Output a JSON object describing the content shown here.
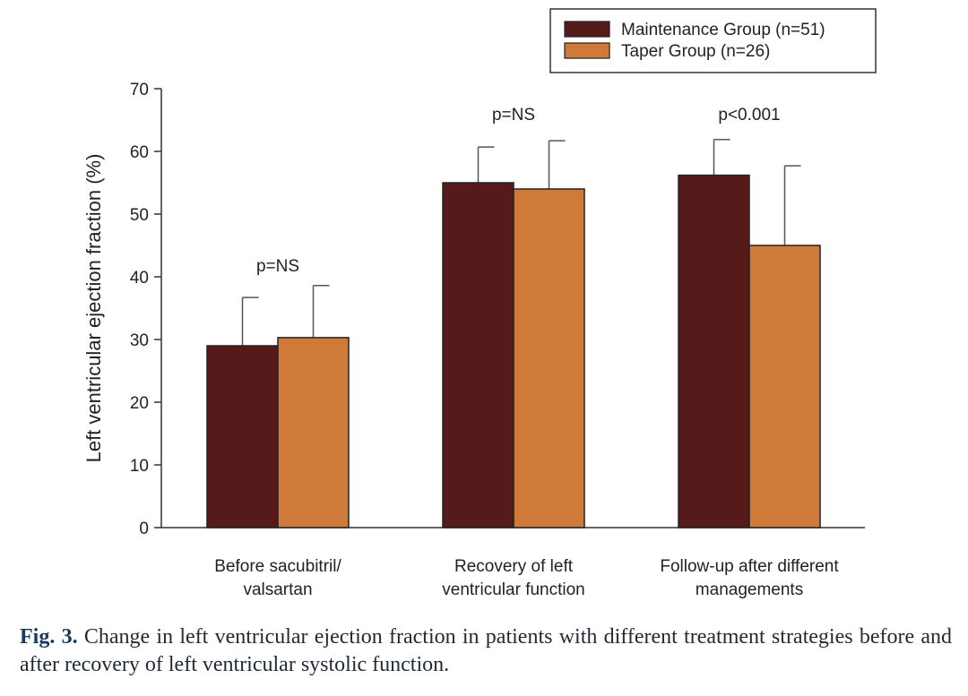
{
  "chart_data": {
    "type": "bar",
    "ylabel": "Left ventricular ejection fraction (%)",
    "xlabel": "",
    "ylim": [
      0,
      70
    ],
    "yticks": [
      0,
      10,
      20,
      30,
      40,
      50,
      60,
      70
    ],
    "grid": false,
    "legend_position": "top-right",
    "categories": [
      [
        "Before sacubitril/",
        "valsartan"
      ],
      [
        "Recovery of left",
        "ventricular function"
      ],
      [
        "Follow-up after different",
        "managements"
      ]
    ],
    "series": [
      {
        "name": "Maintenance Group (n=51)",
        "color": "#571a1a",
        "values": [
          29,
          55,
          56.2
        ],
        "errors": [
          7.7,
          5.7,
          5.7
        ]
      },
      {
        "name": "Taper Group (n=26)",
        "color": "#d07a3a",
        "values": [
          30.3,
          54,
          45
        ],
        "errors": [
          8.3,
          7.7,
          12.7
        ]
      }
    ],
    "annotations": [
      "p=NS",
      "p=NS",
      "p<0.001"
    ]
  },
  "caption": {
    "label": "Fig. 3.",
    "text": "Change in left ventricular ejection fraction in patients with different treatment strategies before and after recovery of left ventricular systolic function."
  }
}
